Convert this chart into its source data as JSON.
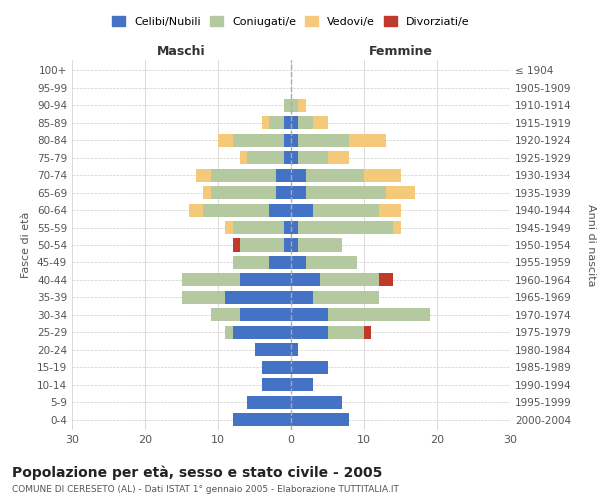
{
  "age_groups": [
    "0-4",
    "5-9",
    "10-14",
    "15-19",
    "20-24",
    "25-29",
    "30-34",
    "35-39",
    "40-44",
    "45-49",
    "50-54",
    "55-59",
    "60-64",
    "65-69",
    "70-74",
    "75-79",
    "80-84",
    "85-89",
    "90-94",
    "95-99",
    "100+"
  ],
  "year_labels": [
    "2000-2004",
    "1995-1999",
    "1990-1994",
    "1985-1989",
    "1980-1984",
    "1975-1979",
    "1970-1974",
    "1965-1969",
    "1960-1964",
    "1955-1959",
    "1950-1954",
    "1945-1949",
    "1940-1944",
    "1935-1939",
    "1930-1934",
    "1925-1929",
    "1920-1924",
    "1915-1919",
    "1910-1914",
    "1905-1909",
    "≤ 1904"
  ],
  "colors": {
    "celibi": "#4472c4",
    "coniugati": "#b5c9a0",
    "vedovi": "#f5c97a",
    "divorziati": "#c0392b"
  },
  "males": {
    "celibi": [
      8,
      6,
      4,
      4,
      5,
      8,
      7,
      9,
      7,
      3,
      1,
      1,
      3,
      2,
      2,
      1,
      1,
      1,
      0,
      0,
      0
    ],
    "coniugati": [
      0,
      0,
      0,
      0,
      0,
      1,
      4,
      6,
      8,
      5,
      6,
      7,
      9,
      9,
      9,
      5,
      7,
      2,
      1,
      0,
      0
    ],
    "vedovi": [
      0,
      0,
      0,
      0,
      0,
      0,
      0,
      0,
      0,
      0,
      0,
      1,
      2,
      1,
      2,
      1,
      2,
      1,
      0,
      0,
      0
    ],
    "divorziati": [
      0,
      0,
      0,
      0,
      0,
      0,
      0,
      0,
      0,
      0,
      1,
      0,
      0,
      0,
      0,
      0,
      0,
      0,
      0,
      0,
      0
    ]
  },
  "females": {
    "celibi": [
      8,
      7,
      3,
      5,
      1,
      5,
      5,
      3,
      4,
      2,
      1,
      1,
      3,
      2,
      2,
      1,
      1,
      1,
      0,
      0,
      0
    ],
    "coniugati": [
      0,
      0,
      0,
      0,
      0,
      5,
      14,
      9,
      8,
      7,
      6,
      13,
      9,
      11,
      8,
      4,
      7,
      2,
      1,
      0,
      0
    ],
    "vedovi": [
      0,
      0,
      0,
      0,
      0,
      0,
      0,
      0,
      0,
      0,
      0,
      1,
      3,
      4,
      5,
      3,
      5,
      2,
      1,
      0,
      0
    ],
    "divorziati": [
      0,
      0,
      0,
      0,
      0,
      1,
      0,
      0,
      2,
      0,
      0,
      0,
      0,
      0,
      0,
      0,
      0,
      0,
      0,
      0,
      0
    ]
  },
  "title": "Popolazione per età, sesso e stato civile - 2005",
  "subtitle": "COMUNE DI CERESETO (AL) - Dati ISTAT 1° gennaio 2005 - Elaborazione TUTTITALIA.IT",
  "ylabel_left": "Fasce di età",
  "ylabel_right": "Anni di nascita",
  "xlabel_left": "Maschi",
  "xlabel_right": "Femmine",
  "xlim": 30,
  "legend_labels": [
    "Celibi/Nubili",
    "Coniugati/e",
    "Vedovi/e",
    "Divorziati/e"
  ],
  "background_color": "#ffffff"
}
